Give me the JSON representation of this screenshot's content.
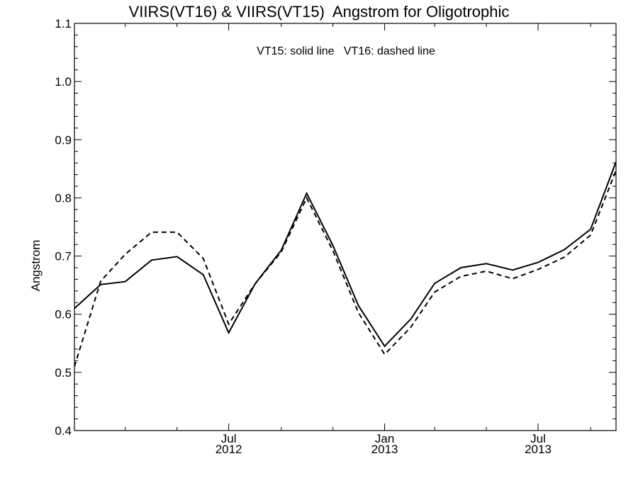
{
  "chart_data": {
    "type": "line",
    "title": "VIIRS(VT16) & VIIRS(VT15)  Angstrom for Oligotrophic",
    "xlabel": "",
    "ylabel": "Angstrom",
    "annotation": "VT15: solid line   VT16: dashed line",
    "ylim": [
      0.4,
      1.1
    ],
    "yticks": [
      0.4,
      0.5,
      0.6,
      0.7,
      0.8,
      0.9,
      1.0,
      1.1
    ],
    "ytick_labels": [
      "0.4",
      "0.5",
      "0.6",
      "0.7",
      "0.8",
      "0.9",
      "1.0",
      "1.1"
    ],
    "xlim": [
      "2012-01-01",
      "2013-10-01"
    ],
    "xticks": [
      {
        "date": "2012-07-01",
        "month": "Jul",
        "year": "2012"
      },
      {
        "date": "2013-01-01",
        "month": "Jan",
        "year": "2013"
      },
      {
        "date": "2013-07-01",
        "month": "Jul",
        "year": "2013"
      }
    ],
    "x": [
      "2012-01-01",
      "2012-02-01",
      "2012-03-01",
      "2012-04-01",
      "2012-05-01",
      "2012-06-01",
      "2012-07-01",
      "2012-08-01",
      "2012-09-01",
      "2012-10-01",
      "2012-11-01",
      "2012-12-01",
      "2013-01-01",
      "2013-02-01",
      "2013-03-01",
      "2013-04-01",
      "2013-05-01",
      "2013-06-01",
      "2013-07-01",
      "2013-08-01",
      "2013-09-01",
      "2013-10-01"
    ],
    "series": [
      {
        "name": "VT15",
        "style": "solid",
        "values": [
          0.61,
          0.651,
          0.656,
          0.693,
          0.699,
          0.668,
          0.568,
          0.652,
          0.71,
          0.808,
          0.718,
          0.615,
          0.545,
          0.592,
          0.653,
          0.68,
          0.687,
          0.676,
          0.689,
          0.711,
          0.746,
          0.862
        ]
      },
      {
        "name": "VT16",
        "style": "dashed",
        "values": [
          0.51,
          0.657,
          0.703,
          0.741,
          0.741,
          0.696,
          0.583,
          0.652,
          0.707,
          0.8,
          0.709,
          0.603,
          0.531,
          0.578,
          0.638,
          0.665,
          0.674,
          0.661,
          0.677,
          0.698,
          0.736,
          0.847
        ]
      }
    ],
    "grid": false,
    "line_color": "#000000"
  }
}
